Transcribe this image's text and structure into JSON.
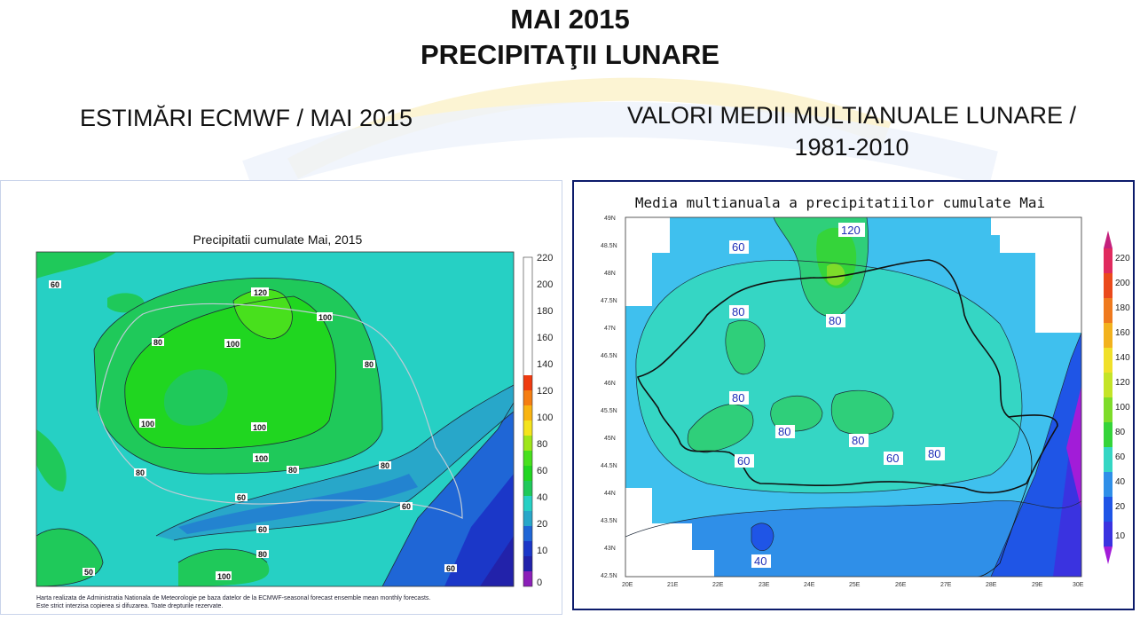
{
  "header": {
    "title_line1": "MAI 2015",
    "title_line2": "PRECIPITAŢII LUNARE",
    "left_subtitle": "ESTIMĂRI ECMWF / MAI 2015",
    "right_subtitle_line1": "VALORI MEDII MULTIANUALE LUNARE /",
    "right_subtitle_line2": "1981-2010"
  },
  "left_map": {
    "title": "Precipitatii cumulate Mai, 2015",
    "footnote_line1": "Harta realizata de Administratia Nationala de Meteorologie pe baza datelor de la ECMWF-seasonal forecast ensemble mean monthly forecasts.",
    "footnote_line2": "Este strict interzisa copierea si difuzarea. Toate drepturile rezervate.",
    "contour_labels": [
      "60",
      "120",
      "100",
      "80",
      "100",
      "80",
      "100",
      "100",
      "100",
      "80",
      "80",
      "80",
      "60",
      "60",
      "60",
      "80",
      "50",
      "100",
      "60"
    ],
    "colorbar_ticks": [
      "220",
      "200",
      "180",
      "160",
      "140",
      "120",
      "100",
      "80",
      "60",
      "40",
      "20",
      "10",
      "0"
    ],
    "colors": [
      "#8b1fb8",
      "#2222aa",
      "#1b37c8",
      "#1f66d6",
      "#28a7c9",
      "#26d0c4",
      "#1fc95a",
      "#20d620",
      "#48e01d",
      "#9ee619",
      "#f4e41d",
      "#f9b411",
      "#f57e12",
      "#ef3b10",
      "#e41010"
    ]
  },
  "right_map": {
    "title": "Media multianuala a precipitatiilor cumulate Mai",
    "contour_labels": [
      "120",
      "60",
      "80",
      "80",
      "80",
      "80",
      "80",
      "80",
      "60",
      "60",
      "40"
    ],
    "lat_labels": [
      "49N",
      "48.5N",
      "48N",
      "47.5N",
      "47N",
      "46.5N",
      "46N",
      "45.5N",
      "45N",
      "44.5N",
      "44N",
      "43.5N",
      "43N",
      "42.5N"
    ],
    "lon_labels": [
      "20E",
      "21E",
      "22E",
      "23E",
      "24E",
      "25E",
      "26E",
      "27E",
      "28E",
      "29E",
      "30E"
    ],
    "colorbar_ticks": [
      "220",
      "200",
      "180",
      "160",
      "140",
      "120",
      "100",
      "80",
      "60",
      "40",
      "20",
      "10"
    ],
    "colors": [
      "#a21cd8",
      "#3a33e0",
      "#1f55e6",
      "#2f8fe8",
      "#3fc0ee",
      "#35d6c4",
      "#2fcf7a",
      "#35d43a",
      "#7edc2a",
      "#c4e428",
      "#f0e02a",
      "#f2b21e",
      "#ef7a1e",
      "#ea4a1c",
      "#e02a5e",
      "#c4207c"
    ]
  }
}
